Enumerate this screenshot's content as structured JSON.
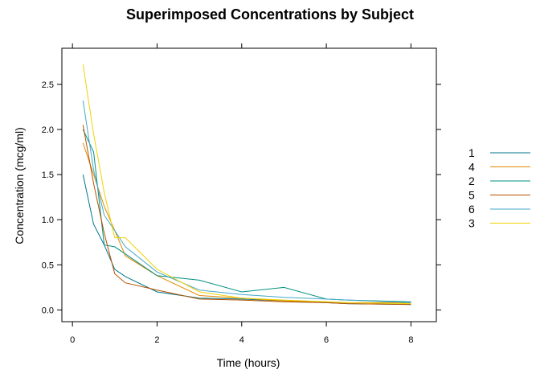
{
  "chart_data": {
    "type": "line",
    "title": "Superimposed Concentrations by Subject",
    "xlabel": "Time (hours)",
    "ylabel": "Concentration (mcg/ml)",
    "xlim": [
      -0.25,
      8.6
    ],
    "ylim": [
      -0.13,
      2.9
    ],
    "x_ticks": [
      0,
      2,
      4,
      6,
      8
    ],
    "y_ticks": [
      0.0,
      0.5,
      1.0,
      1.5,
      2.0,
      2.5
    ],
    "x_tick_labels": [
      "0",
      "2",
      "4",
      "6",
      "8"
    ],
    "y_tick_labels": [
      "0.0",
      "0.5",
      "1.0",
      "1.5",
      "2.0",
      "2.5"
    ],
    "grid": false,
    "legend_position": "right",
    "series": [
      {
        "name": "1",
        "color": "#00758a",
        "x": [
          0.25,
          0.5,
          0.75,
          1,
          1.25,
          2,
          3,
          4,
          5,
          6,
          6.5,
          8
        ],
        "y": [
          1.5,
          0.95,
          0.72,
          0.45,
          0.37,
          0.2,
          0.13,
          0.12,
          0.1,
          0.08,
          0.07,
          0.06
        ]
      },
      {
        "name": "4",
        "color": "#e08a00",
        "x": [
          0.25,
          0.5,
          0.75,
          1,
          1.25,
          2,
          3,
          4,
          5,
          6,
          6.5,
          8
        ],
        "y": [
          1.85,
          1.5,
          1.15,
          0.88,
          0.6,
          0.38,
          0.16,
          0.13,
          0.1,
          0.09,
          0.08,
          0.08
        ]
      },
      {
        "name": "2",
        "color": "#009080",
        "x": [
          0.25,
          0.5,
          0.75,
          1,
          1.25,
          2,
          3,
          4,
          5,
          6,
          6.5,
          8
        ],
        "y": [
          2.0,
          1.75,
          0.72,
          0.7,
          0.62,
          0.38,
          0.33,
          0.2,
          0.25,
          0.12,
          0.11,
          0.09
        ]
      },
      {
        "name": "5",
        "color": "#b85000",
        "x": [
          0.25,
          0.5,
          0.75,
          1,
          1.25,
          2,
          3,
          4,
          5,
          6,
          6.5,
          8
        ],
        "y": [
          2.05,
          1.4,
          0.85,
          0.4,
          0.3,
          0.22,
          0.12,
          0.11,
          0.09,
          0.08,
          0.07,
          0.06
        ]
      },
      {
        "name": "6",
        "color": "#45a8c8",
        "x": [
          0.25,
          0.5,
          0.75,
          1,
          1.25,
          2,
          3,
          4,
          5,
          6,
          6.5,
          8
        ],
        "y": [
          2.32,
          1.55,
          1.05,
          0.88,
          0.7,
          0.42,
          0.22,
          0.17,
          0.14,
          0.12,
          0.11,
          0.08
        ]
      },
      {
        "name": "3",
        "color": "#f0d200",
        "x": [
          0.25,
          0.5,
          0.75,
          1,
          1.25,
          2,
          3,
          4,
          5,
          6,
          6.5,
          8
        ],
        "y": [
          2.72,
          1.95,
          1.3,
          0.8,
          0.8,
          0.45,
          0.2,
          0.13,
          0.11,
          0.09,
          0.08,
          0.07
        ]
      }
    ]
  }
}
